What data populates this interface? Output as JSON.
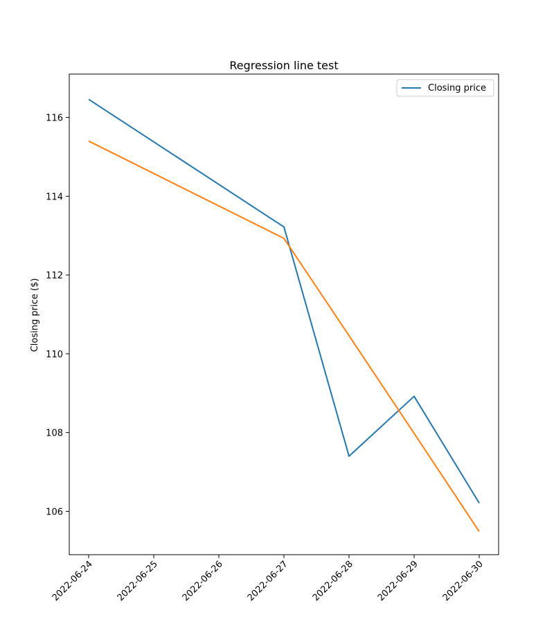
{
  "chart_data": {
    "type": "line",
    "title": "Regression line test",
    "xlabel": "",
    "ylabel": "Closing price ($)",
    "x": [
      "2022-06-24",
      "2022-06-27",
      "2022-06-28",
      "2022-06-29",
      "2022-06-30"
    ],
    "xticks": [
      "2022-06-24",
      "2022-06-25",
      "2022-06-26",
      "2022-06-27",
      "2022-06-28",
      "2022-06-29",
      "2022-06-30"
    ],
    "xlim": [
      "2022-06-24",
      "2022-06-30"
    ],
    "yticks": [
      106,
      108,
      110,
      112,
      114,
      116
    ],
    "ylim": [
      104.9,
      117.1
    ],
    "grid": false,
    "legend_position": "upper right",
    "series": [
      {
        "name": "Closing price",
        "color": "#1f77b4",
        "x": [
          "2022-06-24",
          "2022-06-27",
          "2022-06-28",
          "2022-06-29",
          "2022-06-30"
        ],
        "values": [
          116.46,
          113.22,
          107.4,
          108.92,
          106.21
        ]
      },
      {
        "color": "#ff7f0e",
        "x": [
          "2022-06-24",
          "2022-06-27",
          "2022-06-28",
          "2022-06-29",
          "2022-06-30"
        ],
        "values": [
          115.4,
          112.93,
          110.46,
          107.98,
          105.49
        ]
      }
    ]
  }
}
